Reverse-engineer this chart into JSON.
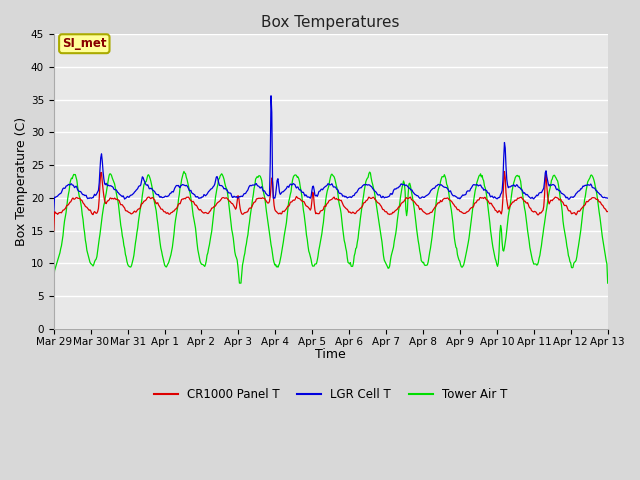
{
  "title": "Box Temperatures",
  "xlabel": "Time",
  "ylabel": "Box Temperature (C)",
  "ylim": [
    0,
    45
  ],
  "yticks": [
    0,
    5,
    10,
    15,
    20,
    25,
    30,
    35,
    40,
    45
  ],
  "fig_bg_color": "#d8d8d8",
  "plot_bg_color": "#e8e8e8",
  "grid_color": "#ffffff",
  "annotation_label": "SI_met",
  "annotation_box_color": "#ffff99",
  "annotation_border_color": "#aaaa00",
  "annotation_text_color": "#880000",
  "series": {
    "CR1000 Panel T": {
      "color": "#dd0000",
      "label": "CR1000 Panel T"
    },
    "LGR Cell T": {
      "color": "#0000dd",
      "label": "LGR Cell T"
    },
    "Tower Air T": {
      "color": "#00dd00",
      "label": "Tower Air T"
    }
  },
  "tick_labels": [
    "Mar 29",
    "Mar 30",
    "Mar 31",
    "Apr 1",
    "Apr 2",
    "Apr 3",
    "Apr 4",
    "Apr 5",
    "Apr 6",
    "Apr 7",
    "Apr 8",
    "Apr 9",
    "Apr 10",
    "Apr 11",
    "Apr 12",
    "Apr 13"
  ]
}
